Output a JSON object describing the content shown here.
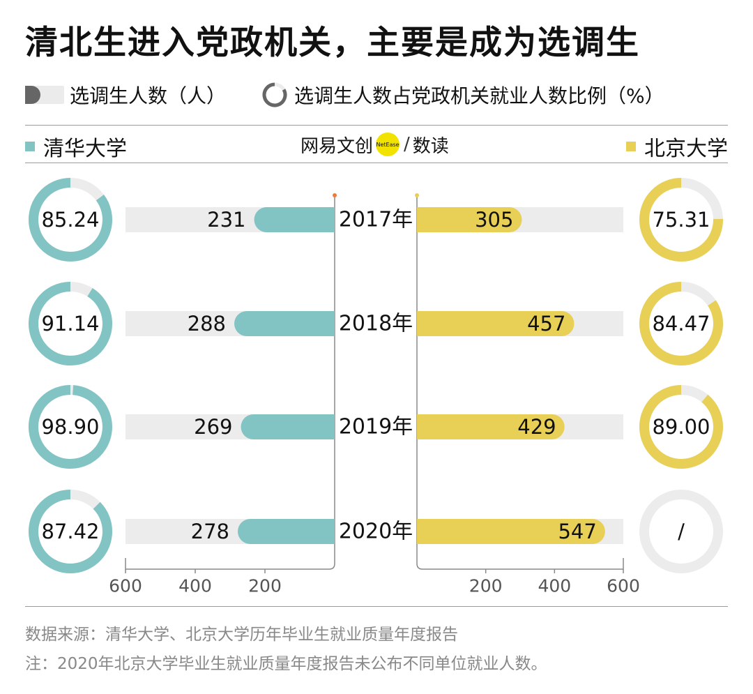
{
  "title": "清北生进入党政机关，主要是成为选调生",
  "legend": {
    "bar_label": "选调生人数（人）",
    "ring_label": "选调生人数占党政机关就业人数比例（%）"
  },
  "brand": {
    "part1": "网易文创",
    "dot_text": "NetEase",
    "slash": "/",
    "part2": "数读"
  },
  "colors": {
    "tsinghua": "#82c3c3",
    "peking": "#e8cf56",
    "track": "#ececec",
    "axis": "#888888",
    "left_axis_dot": "#f07a3c",
    "right_axis_dot": "#e8cf56"
  },
  "chart_data": {
    "type": "bar",
    "title": "清北生进入党政机关，主要是成为选调生",
    "categories": [
      "2017年",
      "2018年",
      "2019年",
      "2020年"
    ],
    "series": [
      {
        "name": "清华大学",
        "values": [
          231,
          288,
          269,
          278
        ],
        "ratios": [
          85.24,
          91.14,
          98.9,
          87.42
        ],
        "ratio_labels": [
          "85.24",
          "91.14",
          "98.90",
          "87.42"
        ]
      },
      {
        "name": "北京大学",
        "values": [
          305,
          457,
          429,
          547
        ],
        "ratios": [
          75.31,
          84.47,
          89.0,
          null
        ],
        "ratio_labels": [
          "75.31",
          "84.47",
          "89.00",
          "/"
        ]
      }
    ],
    "left_axis": {
      "range": [
        600,
        0
      ],
      "ticks": [
        600,
        400,
        200
      ]
    },
    "right_axis": {
      "range": [
        0,
        600
      ],
      "ticks": [
        200,
        400,
        600
      ]
    },
    "value_unit": "人",
    "ratio_unit": "%"
  },
  "footer": {
    "source": "数据来源：清华大学、北京大学历年毕业生就业质量年度报告",
    "note": "注：2020年北京大学毕业生就业质量年度报告未公布不同单位就业人数。"
  }
}
